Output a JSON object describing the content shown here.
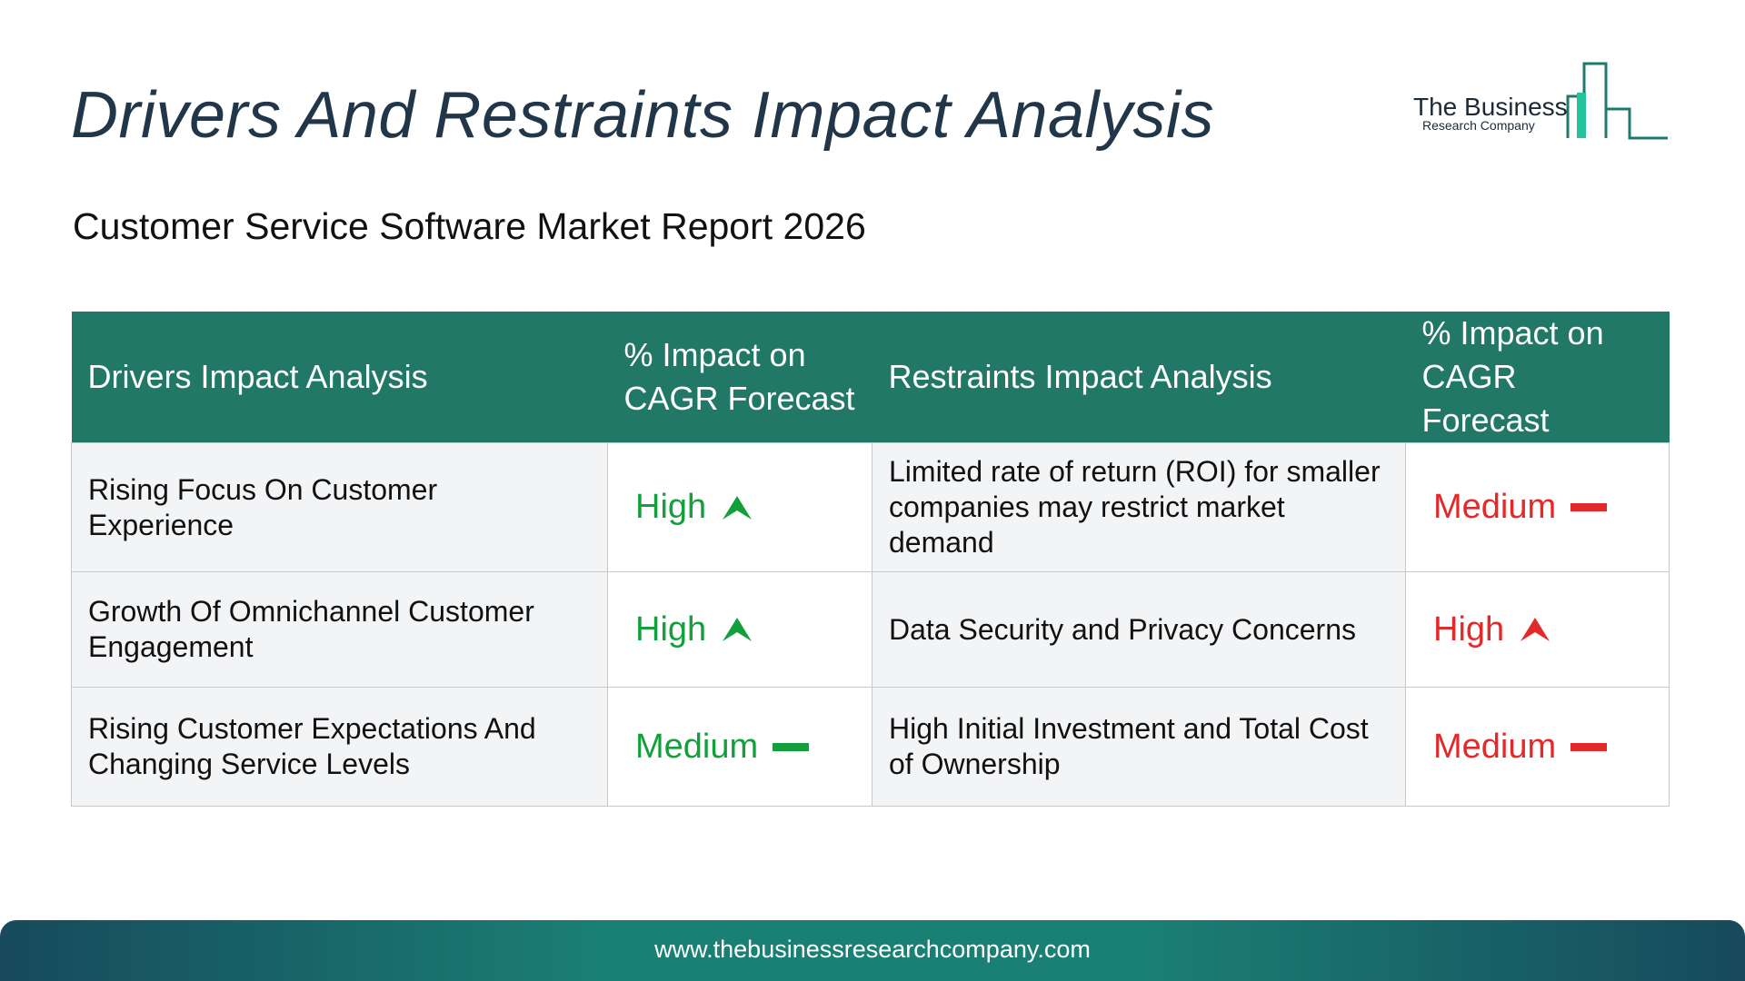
{
  "title": "Drivers And Restraints Impact Analysis",
  "subtitle": "Customer Service Software Market Report 2026",
  "logo": {
    "name": "The Business",
    "sub": "Research Company"
  },
  "colors": {
    "header": "#217866",
    "title": "#22364a",
    "positive": "#13a03c",
    "negative": "#e32a2a"
  },
  "table": {
    "headers": [
      "Drivers Impact Analysis",
      "% Impact on CAGR Forecast",
      "Restraints Impact Analysis",
      "% Impact on CAGR Forecast"
    ],
    "rows": [
      {
        "driver": "Rising Focus On Customer Experience",
        "driver_impact": "High",
        "driver_icon": "arrow-up-icon",
        "restraint": "Limited rate of return (ROI) for smaller companies may restrict market demand",
        "restraint_impact": "Medium",
        "restraint_icon": "dash-icon"
      },
      {
        "driver": "Growth Of Omnichannel Customer Engagement",
        "driver_impact": "High",
        "driver_icon": "arrow-up-icon",
        "restraint": "Data Security and Privacy Concerns",
        "restraint_impact": "High",
        "restraint_icon": "arrow-up-icon"
      },
      {
        "driver": "Rising Customer Expectations And Changing Service Levels",
        "driver_impact": "Medium",
        "driver_icon": "dash-icon",
        "restraint": "High Initial Investment and Total Cost of Ownership",
        "restraint_impact": "Medium",
        "restraint_icon": "dash-icon"
      }
    ]
  },
  "footer": {
    "url": "www.thebusinessresearchcompany.com"
  }
}
